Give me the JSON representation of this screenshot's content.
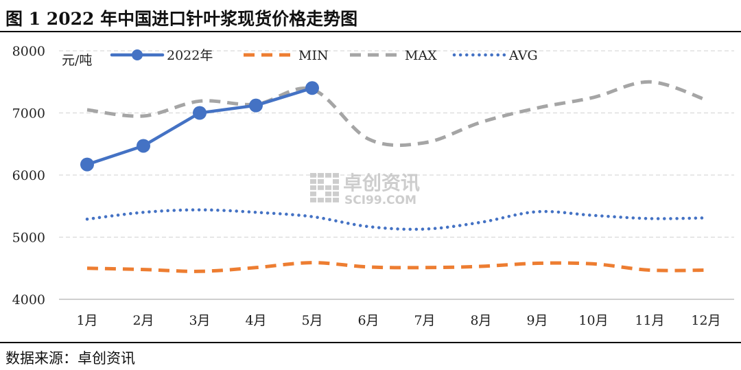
{
  "title": "图 1 2022 年中国进口针叶浆现货价格走势图",
  "source": "数据来源：卓创资讯",
  "watermark": {
    "brand": "卓创资讯",
    "domain": "SCI99.COM"
  },
  "chart_data": {
    "type": "line",
    "ylabel": "元/吨",
    "ylim": [
      4000,
      8000
    ],
    "yticks": [
      4000,
      5000,
      6000,
      7000,
      8000
    ],
    "grid": true,
    "legend_position": "top",
    "categories": [
      "1月",
      "2月",
      "3月",
      "4月",
      "5月",
      "6月",
      "7月",
      "8月",
      "9月",
      "10月",
      "11月",
      "12月"
    ],
    "series": [
      {
        "name": "2022年",
        "color": "#4472c4",
        "style": "solid-markers",
        "values": [
          6170,
          6470,
          7000,
          7120,
          7400,
          null,
          null,
          null,
          null,
          null,
          null,
          null
        ]
      },
      {
        "name": "MIN",
        "color": "#ed7d31",
        "style": "dashed",
        "values": [
          4500,
          4480,
          4450,
          4510,
          4590,
          4520,
          4510,
          4530,
          4580,
          4570,
          4470,
          4470
        ]
      },
      {
        "name": "MAX",
        "color": "#a5a5a5",
        "style": "dashed",
        "values": [
          7050,
          6950,
          7190,
          7140,
          7380,
          6580,
          6520,
          6850,
          7080,
          7250,
          7500,
          7210
        ]
      },
      {
        "name": "AVG",
        "color": "#4472c4",
        "style": "dotted",
        "values": [
          5290,
          5400,
          5440,
          5400,
          5330,
          5170,
          5130,
          5240,
          5410,
          5350,
          5300,
          5310
        ]
      }
    ]
  }
}
